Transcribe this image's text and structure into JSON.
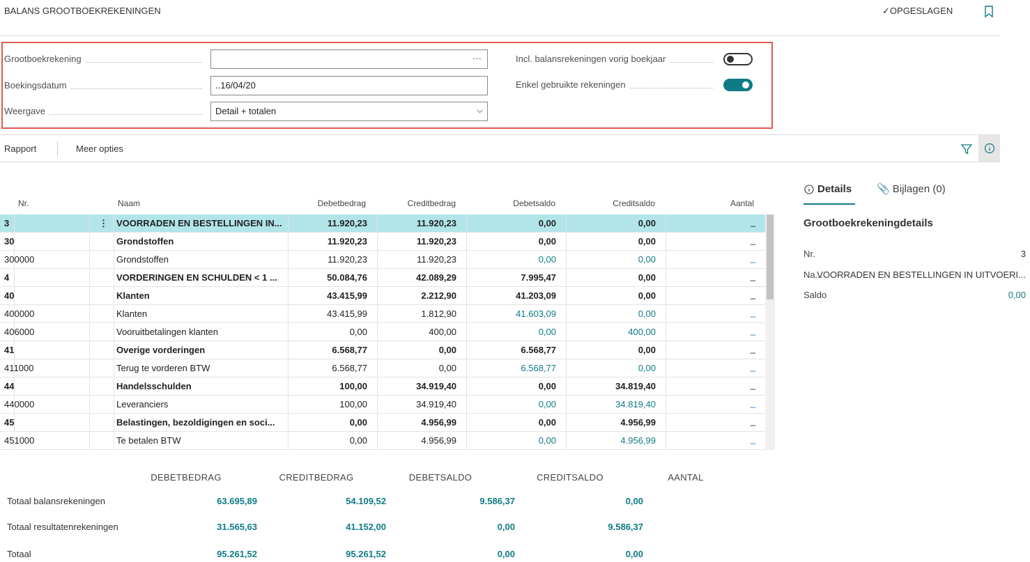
{
  "header": {
    "title": "BALANS GROOTBOEKREKENINGEN",
    "saved": "OPGESLAGEN"
  },
  "filters": {
    "fields": [
      {
        "label": "Grootboekrekening"
      },
      {
        "label": "Boekingsdatum",
        "value": "..16/04/20"
      },
      {
        "label": "Weergave",
        "value": "Detail + totalen"
      }
    ],
    "toggles": [
      {
        "label": "Incl. balansrekeningen vorig boekjaar",
        "on": false
      },
      {
        "label": "Enkel gebruikte rekeningen",
        "on": true
      }
    ]
  },
  "actions": [
    "Rapport",
    "Meer opties"
  ],
  "table": {
    "columns": [
      "Nr.",
      "Naam",
      "Debetbedrag",
      "Creditbedrag",
      "Debetsaldo",
      "Creditsaldo",
      "Aantal"
    ],
    "selected_row": 0,
    "rows": [
      {
        "cells": [
          "3",
          "VOORRADEN EN BESTELLINGEN IN...",
          "11.920,23",
          "11.920,23",
          "0,00",
          "0,00",
          "_"
        ],
        "bold": true
      },
      {
        "cells": [
          "30",
          "Grondstoffen",
          "11.920,23",
          "11.920,23",
          "0,00",
          "0,00",
          "_"
        ],
        "bold": true
      },
      {
        "cells": [
          "300000",
          "Grondstoffen",
          "11.920,23",
          "11.920,23",
          "0,00",
          "0,00",
          "_"
        ],
        "bold": false
      },
      {
        "cells": [
          "4",
          "VORDERINGEN EN SCHULDEN < 1 ...",
          "50.084,76",
          "42.089,29",
          "7.995,47",
          "0,00",
          "_"
        ],
        "bold": true
      },
      {
        "cells": [
          "40",
          "Klanten",
          "43.415,99",
          "2.212,90",
          "41.203,09",
          "0,00",
          "_"
        ],
        "bold": true
      },
      {
        "cells": [
          "400000",
          "Klanten",
          "43.415,99",
          "1.812,90",
          "41.603,09",
          "0,00",
          "_"
        ],
        "bold": false
      },
      {
        "cells": [
          "406000",
          "Vooruitbetalingen klanten",
          "0,00",
          "400,00",
          "0,00",
          "400,00",
          "_"
        ],
        "bold": false
      },
      {
        "cells": [
          "41",
          "Overige vorderingen",
          "6.568,77",
          "0,00",
          "6.568,77",
          "0,00",
          "_"
        ],
        "bold": true
      },
      {
        "cells": [
          "411000",
          "Terug te vorderen BTW",
          "6.568,77",
          "0,00",
          "6.568,77",
          "0,00",
          "_"
        ],
        "bold": false
      },
      {
        "cells": [
          "44",
          "Handelsschulden",
          "100,00",
          "34.919,40",
          "0,00",
          "34.819,40",
          "_"
        ],
        "bold": true
      },
      {
        "cells": [
          "440000",
          "Leveranciers",
          "100,00",
          "34.919,40",
          "0,00",
          "34.819,40",
          "_"
        ],
        "bold": false
      },
      {
        "cells": [
          "45",
          "Belastingen, bezoldigingen en soci...",
          "0,00",
          "4.956,99",
          "0,00",
          "4.956,99",
          "_"
        ],
        "bold": true
      },
      {
        "cells": [
          "451000",
          "Te betalen BTW",
          "0,00",
          "4.956,99",
          "0,00",
          "4.956,99",
          "_"
        ],
        "bold": false
      }
    ]
  },
  "totals": {
    "columns": [
      "DEBETBEDRAG",
      "CREDITBEDRAG",
      "DEBETSALDO",
      "CREDITSALDO",
      "AANTAL"
    ],
    "rows": [
      {
        "label": "Totaal balansrekeningen",
        "values": [
          "63.695,89",
          "54.109,52",
          "9.586,37",
          "0,00"
        ]
      },
      {
        "label": "Totaal resultatenrekeningen",
        "values": [
          "31.565,63",
          "41.152,00",
          "0,00",
          "9.586,37"
        ]
      },
      {
        "label": "Totaal",
        "values": [
          "95.261,52",
          "95.261,52",
          "0,00",
          "0,00"
        ]
      }
    ]
  },
  "factbox": {
    "tabs": [
      "Details",
      "Bijlagen (0)"
    ],
    "heading": "Grootboekrekeningdetails",
    "fields": [
      {
        "label": "Nr.",
        "value": "3"
      },
      {
        "label": "Na...",
        "value": "VOORRADEN EN BESTELLINGEN IN UITVOERI..."
      },
      {
        "label": "Saldo",
        "value": "0,00"
      }
    ]
  }
}
